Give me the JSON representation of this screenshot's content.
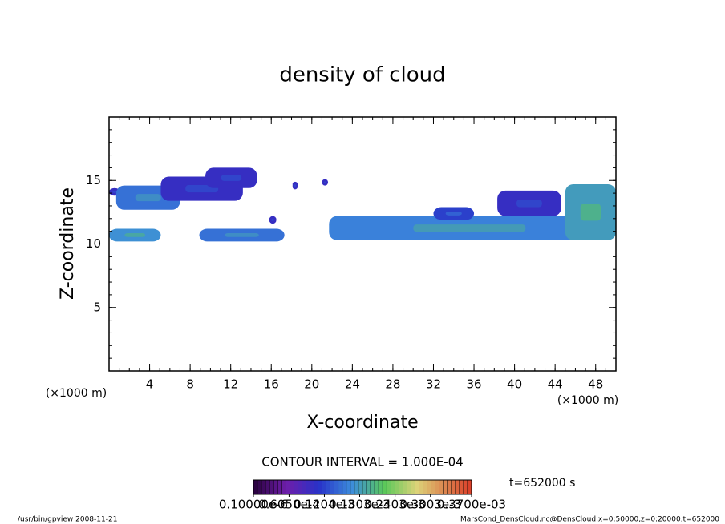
{
  "chart_data": {
    "type": "contour",
    "title": "density of cloud",
    "xlabel": "X-coordinate",
    "ylabel": "Z-coordinate",
    "xunit_left": "(×1000 m)",
    "xunit_right": "(×1000 m)",
    "xlim": [
      0,
      50
    ],
    "ylim": [
      0,
      20
    ],
    "xticks": [
      4,
      8,
      12,
      16,
      20,
      24,
      28,
      32,
      36,
      40,
      44,
      48
    ],
    "yticks": [
      5,
      10,
      15
    ],
    "xminor": 1,
    "yminor": 1,
    "patches": [
      {
        "x": [
          0,
          1.1
        ],
        "z": [
          13.8,
          14.4
        ],
        "value": 0.0001
      },
      {
        "x": [
          0.7,
          7
        ],
        "z": [
          12.7,
          14.6
        ],
        "value": 0.00015
      },
      {
        "x": [
          5.1,
          13.2
        ],
        "z": [
          13.4,
          15.3
        ],
        "value": 0.0001
      },
      {
        "x": [
          9.5,
          14.6
        ],
        "z": [
          14.4,
          16
        ],
        "value": 0.0001
      },
      {
        "x": [
          0,
          5.1
        ],
        "z": [
          10.2,
          11.2
        ],
        "value": 0.00017
      },
      {
        "x": [
          8.9,
          17.3
        ],
        "z": [
          10.2,
          11.2
        ],
        "value": 0.00015
      },
      {
        "x": [
          21.7,
          49.4
        ],
        "z": [
          10.3,
          12.2
        ],
        "value": 0.00016
      },
      {
        "x": [
          32,
          36
        ],
        "z": [
          11.9,
          12.9
        ],
        "value": 0.00012
      },
      {
        "x": [
          38.3,
          44.6
        ],
        "z": [
          12.2,
          14.2
        ],
        "value": 0.0001
      },
      {
        "x": [
          45,
          50
        ],
        "z": [
          10.3,
          14.7
        ],
        "value": 0.00018
      },
      {
        "x": [
          18.1,
          18.6
        ],
        "z": [
          14.3,
          14.9
        ],
        "value": 0.0001
      },
      {
        "x": [
          21,
          21.6
        ],
        "z": [
          14.6,
          15.1
        ],
        "value": 0.0001
      },
      {
        "x": [
          15.8,
          16.5
        ],
        "z": [
          11.6,
          12.2
        ],
        "value": 0.0001
      }
    ],
    "contour_interval": "CONTOUR INTERVAL = 1.000E-04",
    "colorbar_lim": [
      1e-07,
      0.00037
    ],
    "colorbar_ticks": [
      {
        "value": 1e-07,
        "label": "0.10000e-6"
      },
      {
        "value": 6.05e-05,
        "label": "0.6050e-4"
      },
      {
        "value": 0.0001204,
        "label": "0.1204e-3"
      },
      {
        "value": 0.0001803,
        "label": "0.1803e-3"
      },
      {
        "value": 0.0002403,
        "label": "0.2403e-3"
      },
      {
        "value": 0.0003003,
        "label": "0.3003e-3"
      },
      {
        "value": 0.00037,
        "label": "0.3700e-03"
      }
    ],
    "time_label": "t=652000 s",
    "footer_left": "/usr/bin/gpview  2008-11-21",
    "footer_right": "MarsCond_DensCloud.nc@DensCloud,x=0:50000,z=0:20000,t=652000"
  }
}
